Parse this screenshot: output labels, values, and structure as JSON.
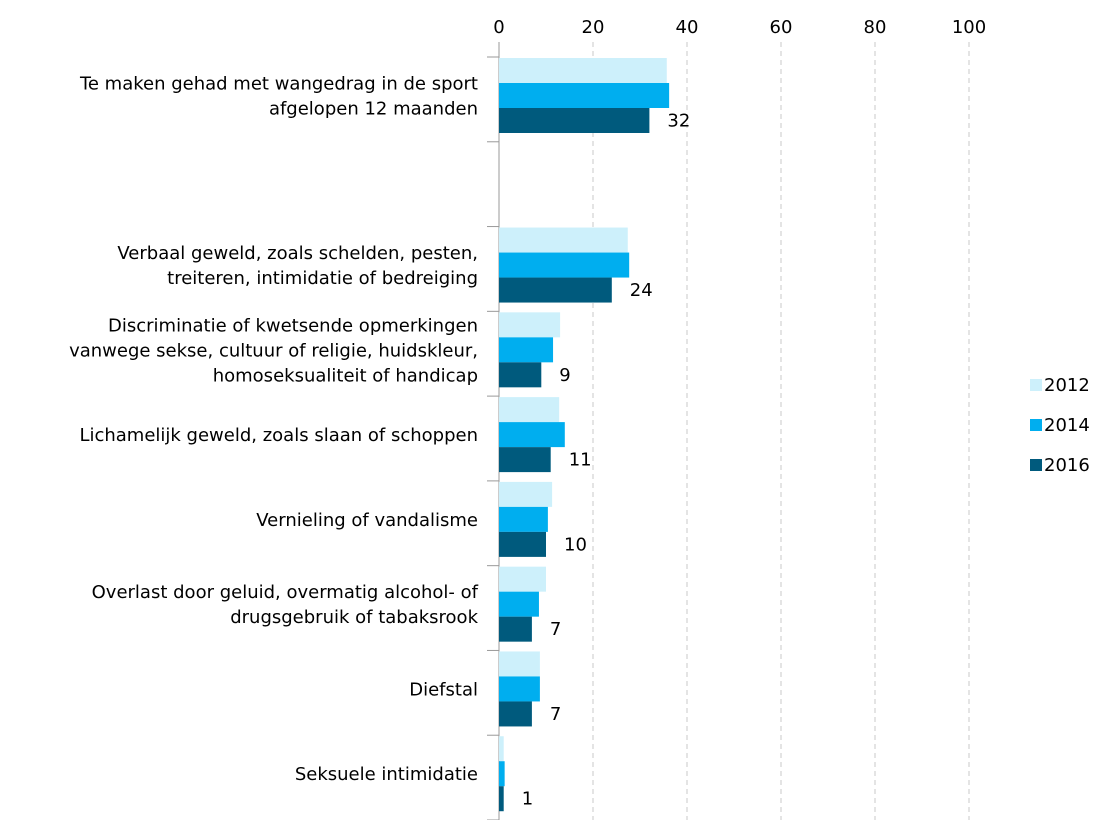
{
  "chart_data": {
    "type": "bar",
    "orientation": "horizontal",
    "categories": [
      [
        "Te maken gehad met wangedrag in de sport",
        "afgelopen 12 maanden"
      ],
      null,
      [
        "Verbaal geweld, zoals schelden, pesten,",
        "treiteren, intimidatie of bedreiging"
      ],
      [
        "Discriminatie of kwetsende opmerkingen",
        "vanwege sekse, cultuur of religie, huidskleur,",
        "homoseksualiteit of handicap"
      ],
      [
        "Lichamelijk geweld, zoals slaan of schoppen"
      ],
      [
        "Vernieling of vandalisme"
      ],
      [
        "Overlast door geluid, overmatig alcohol- of",
        "drugsgebruik of tabaksrook"
      ],
      [
        "Diefstal"
      ],
      [
        "Seksuele intimidatie"
      ]
    ],
    "series": [
      {
        "name": "2012",
        "color": "#cdf0fb",
        "values": [
          35.7,
          null,
          27.4,
          13,
          12.8,
          11.3,
          10,
          8.7,
          1
        ]
      },
      {
        "name": "2014",
        "color": "#00aeef",
        "values": [
          36.2,
          null,
          27.7,
          11.5,
          14,
          10.4,
          8.5,
          8.7,
          1.2
        ]
      },
      {
        "name": "2016",
        "color": "#005a7d",
        "values": [
          32,
          null,
          24,
          9,
          11,
          10,
          7,
          7,
          1
        ],
        "data_labels": true
      }
    ],
    "xlim": [
      0,
      100
    ],
    "xticks": [
      0,
      20,
      40,
      60,
      80,
      100
    ],
    "grid": true,
    "legend": "right"
  }
}
